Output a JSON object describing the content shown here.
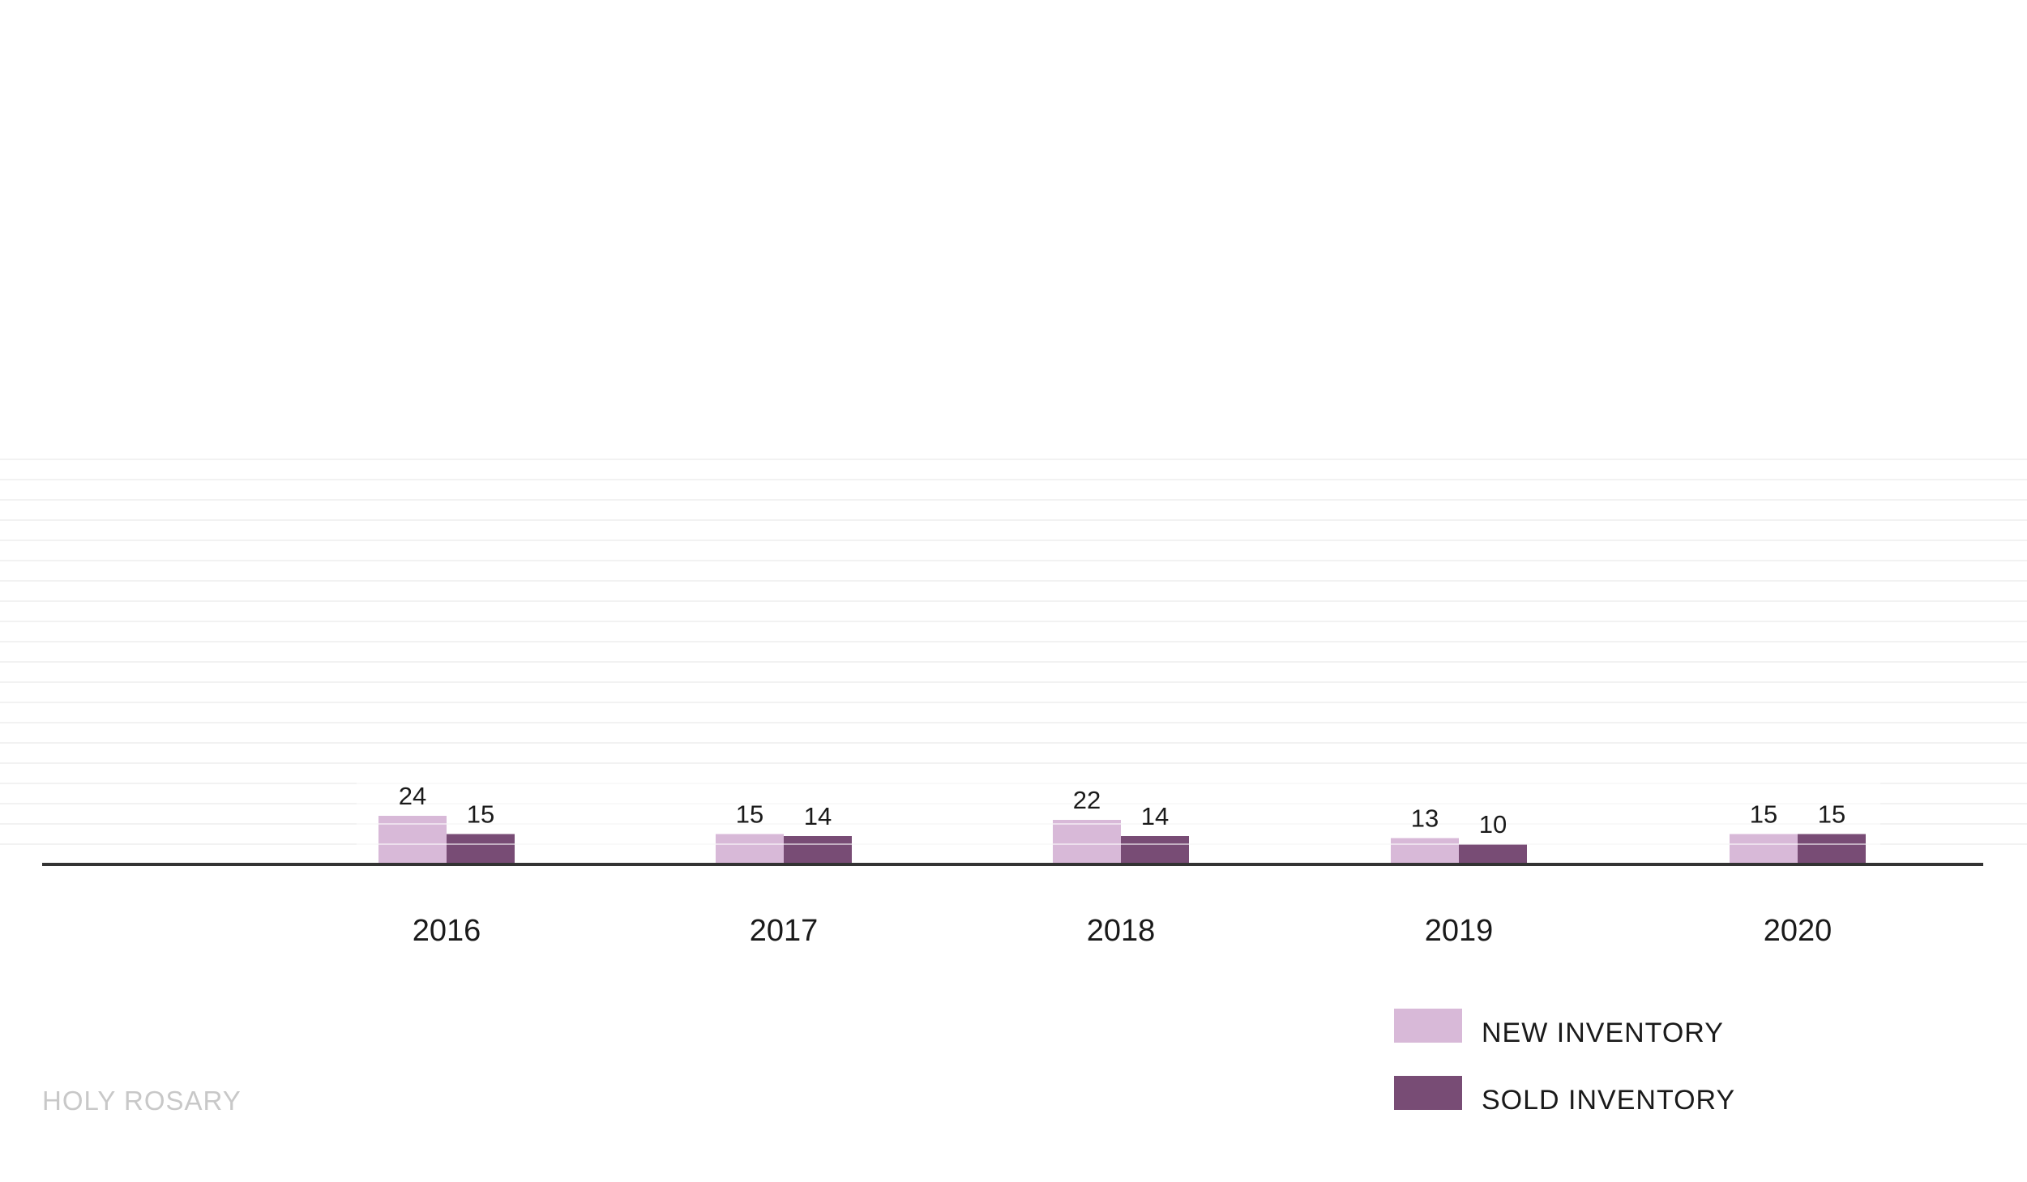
{
  "chart_data": {
    "type": "bar",
    "categories": [
      "2016",
      "2017",
      "2018",
      "2019",
      "2020"
    ],
    "series": [
      {
        "name": "NEW INVENTORY",
        "values": [
          24,
          15,
          22,
          13,
          15
        ],
        "color": "#d8b9d8"
      },
      {
        "name": "SOLD INVENTORY",
        "values": [
          15,
          14,
          14,
          10,
          15
        ],
        "color": "#784c75"
      }
    ],
    "ylim": [
      0,
      200
    ],
    "grid": true,
    "gridline_step": 10,
    "legend_position": "bottom-right",
    "title": "",
    "xlabel": "",
    "ylabel": ""
  },
  "footer": {
    "label": "HOLY ROSARY"
  },
  "colors": {
    "axis": "#333333",
    "grid": "#f2f2f2",
    "footer": "#c8c8c8"
  }
}
